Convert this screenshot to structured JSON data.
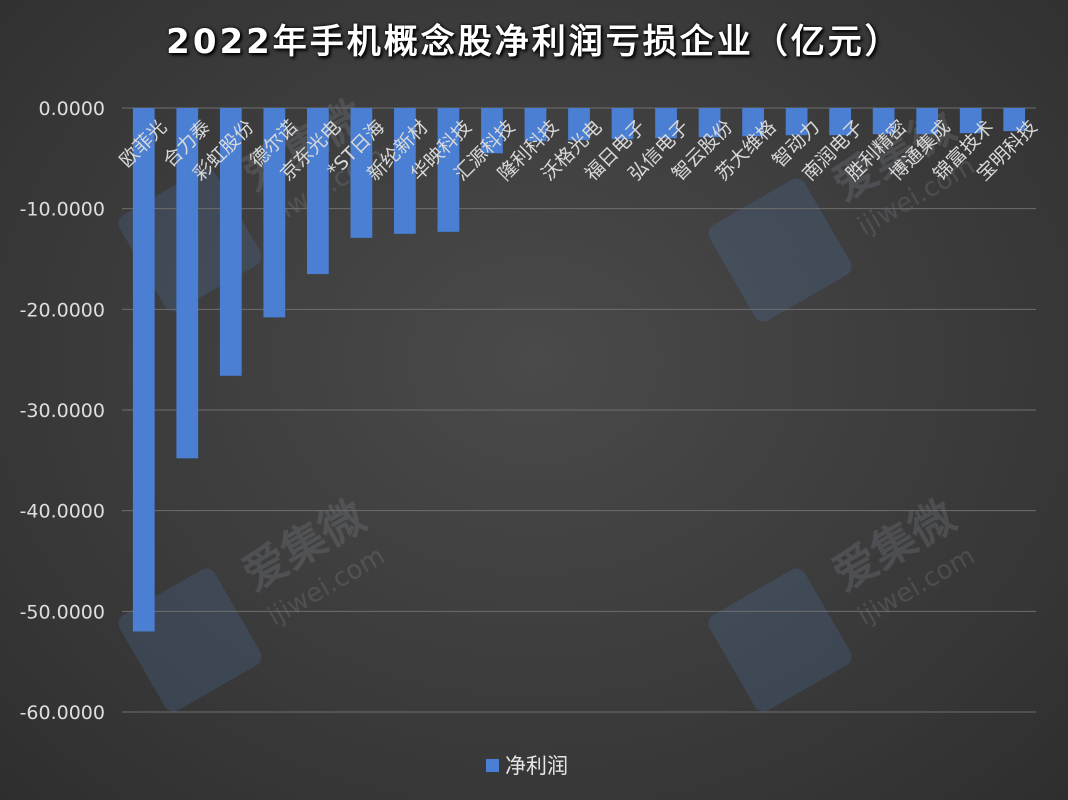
{
  "chart_data": {
    "type": "bar",
    "title": "2022年手机概念股净利润亏损企业（亿元）",
    "xlabel": "",
    "ylabel": "",
    "ylim": [
      -60,
      0
    ],
    "yticks": [
      0,
      -10,
      -20,
      -30,
      -40,
      -50,
      -60
    ],
    "ytick_labels": [
      "0.0000",
      "-10.0000",
      "-20.0000",
      "-30.0000",
      "-40.0000",
      "-50.0000",
      "-60.0000"
    ],
    "grid": true,
    "legend_position": "bottom",
    "categories": [
      "欧菲光",
      "合力泰",
      "彩虹股份",
      "德尔诺",
      "京东光电",
      "*ST日海",
      "新纶新材",
      "华映科技",
      "汇源科技",
      "隆利科技",
      "沃格光电",
      "福日电子",
      "弘信电子",
      "智云股份",
      "苏大维格",
      "智动力",
      "南润电子",
      "胜利精密",
      "博通集成",
      "锦富技术",
      "宝明科技"
    ],
    "series": [
      {
        "name": "净利润",
        "color": "#4a7fd4",
        "values": [
          -52.0,
          -34.8,
          -26.6,
          -20.8,
          -16.5,
          -12.9,
          -12.5,
          -12.3,
          -4.5,
          -3.3,
          -3.2,
          -3.1,
          -3.0,
          -2.9,
          -2.8,
          -2.7,
          -2.7,
          -2.6,
          -2.6,
          -2.5,
          -2.3
        ]
      }
    ]
  },
  "watermark": {
    "text": "爱集微",
    "url": "ijiwei.com"
  }
}
